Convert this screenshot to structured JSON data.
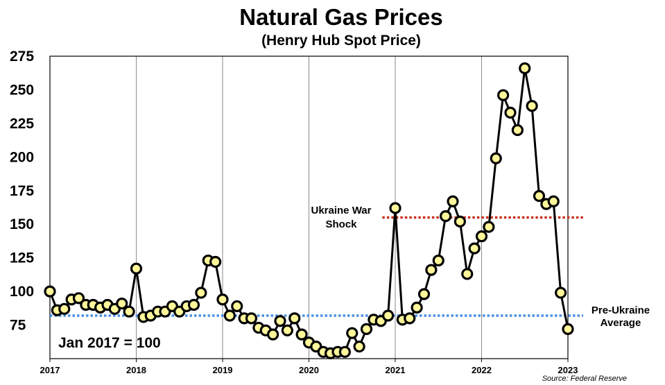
{
  "chart_data": {
    "type": "line",
    "title": "Natural Gas Prices",
    "subtitle": "(Henry Hub Spot Price)",
    "ylim": [
      50,
      275
    ],
    "yticks": [
      75,
      100,
      125,
      150,
      175,
      200,
      225,
      250,
      275
    ],
    "xlim": [
      2017,
      2023
    ],
    "xticks": [
      "2017",
      "2018",
      "2019",
      "2020",
      "2021",
      "2022",
      "2023"
    ],
    "grid": "vertical lines at years",
    "index_note": "Jan 2017 = 100",
    "source": "Source: Federal Reserve",
    "series": [
      {
        "start": "2017-01",
        "frequency": "monthly",
        "values": [
          100,
          86,
          87,
          94,
          95,
          90,
          90,
          88,
          90,
          87,
          91,
          85,
          117,
          81,
          82,
          85,
          85,
          89,
          85,
          89,
          90,
          99,
          123,
          122,
          94,
          82,
          89,
          80,
          80,
          73,
          71,
          68,
          78,
          71,
          80,
          68,
          62,
          59,
          55,
          54,
          55,
          55,
          69,
          59,
          72,
          79,
          78,
          82,
          162,
          79,
          80,
          88,
          98,
          116,
          123,
          156,
          167,
          152,
          113,
          132,
          141,
          148,
          199,
          246,
          233,
          220,
          266,
          238,
          171,
          165,
          167,
          99,
          72
        ]
      }
    ],
    "reference_lines": [
      {
        "label_line1": "Ukraine War",
        "label_line2": "Shock",
        "value": 155,
        "color": "#c8321e"
      },
      {
        "label_line1": "Pre-Ukraine",
        "label_line2": "Average",
        "value": 82,
        "color": "#4a90e2"
      }
    ]
  }
}
